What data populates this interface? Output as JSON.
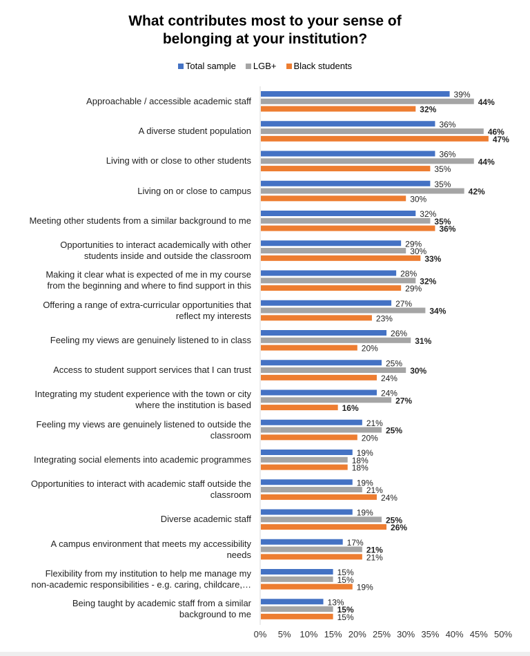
{
  "chart_data": {
    "type": "bar",
    "orientation": "horizontal",
    "title": "What contributes most to your sense of belonging at your institution?",
    "legend_position": "top",
    "xlim": [
      0,
      50
    ],
    "x_ticks": [
      "0%",
      "5%",
      "10%",
      "15%",
      "20%",
      "25%",
      "30%",
      "35%",
      "40%",
      "45%",
      "50%"
    ],
    "grid": false,
    "categories": [
      [
        "Approachable / accessible academic staff"
      ],
      [
        "A diverse student population"
      ],
      [
        "Living with or close to other students"
      ],
      [
        "Living on or close to campus"
      ],
      [
        "Meeting other students from a similar background to me"
      ],
      [
        "Opportunities to interact academically with other",
        "students inside and outside the classroom"
      ],
      [
        "Making it clear what is expected of me in my course",
        "from the beginning and where to find support in this"
      ],
      [
        "Offering a range of extra-curricular opportunities that",
        "reflect my interests"
      ],
      [
        "Feeling my views are genuinely listened to in class"
      ],
      [
        "Access to student support services that I can trust"
      ],
      [
        "Integrating my student experience with the town or city",
        "where the institution is based"
      ],
      [
        "Feeling my views are genuinely listened to outside the",
        "classroom"
      ],
      [
        "Integrating social elements into academic programmes"
      ],
      [
        "Opportunities to interact with academic staff outside the",
        "classroom"
      ],
      [
        "Diverse academic staff"
      ],
      [
        "A campus environment that meets my accessibility",
        "needs"
      ],
      [
        "Flexibility from my institution to help me manage my",
        "non-academic responsibilities - e.g. caring, childcare,…"
      ],
      [
        "Being taught by academic staff from a similar",
        "background to me"
      ]
    ],
    "series": [
      {
        "name": "Total sample",
        "color": "#4472C4",
        "values": [
          39,
          36,
          36,
          35,
          32,
          29,
          28,
          27,
          26,
          25,
          24,
          21,
          19,
          19,
          19,
          17,
          15,
          13
        ],
        "bold": [
          false,
          false,
          false,
          false,
          false,
          false,
          false,
          false,
          false,
          false,
          false,
          false,
          false,
          false,
          false,
          false,
          false,
          false
        ]
      },
      {
        "name": "LGB+",
        "color": "#A5A5A5",
        "values": [
          44,
          46,
          44,
          42,
          35,
          30,
          32,
          34,
          31,
          30,
          27,
          25,
          18,
          21,
          25,
          21,
          15,
          15
        ],
        "bold": [
          true,
          true,
          true,
          true,
          true,
          false,
          true,
          true,
          true,
          true,
          true,
          true,
          false,
          false,
          true,
          true,
          false,
          true
        ]
      },
      {
        "name": "Black students",
        "color": "#ED7D31",
        "values": [
          32,
          47,
          35,
          30,
          36,
          33,
          29,
          23,
          20,
          24,
          16,
          20,
          18,
          24,
          26,
          21,
          19,
          15
        ],
        "bold": [
          true,
          true,
          false,
          false,
          true,
          true,
          false,
          false,
          false,
          false,
          true,
          false,
          false,
          false,
          true,
          false,
          false,
          false
        ]
      }
    ]
  }
}
